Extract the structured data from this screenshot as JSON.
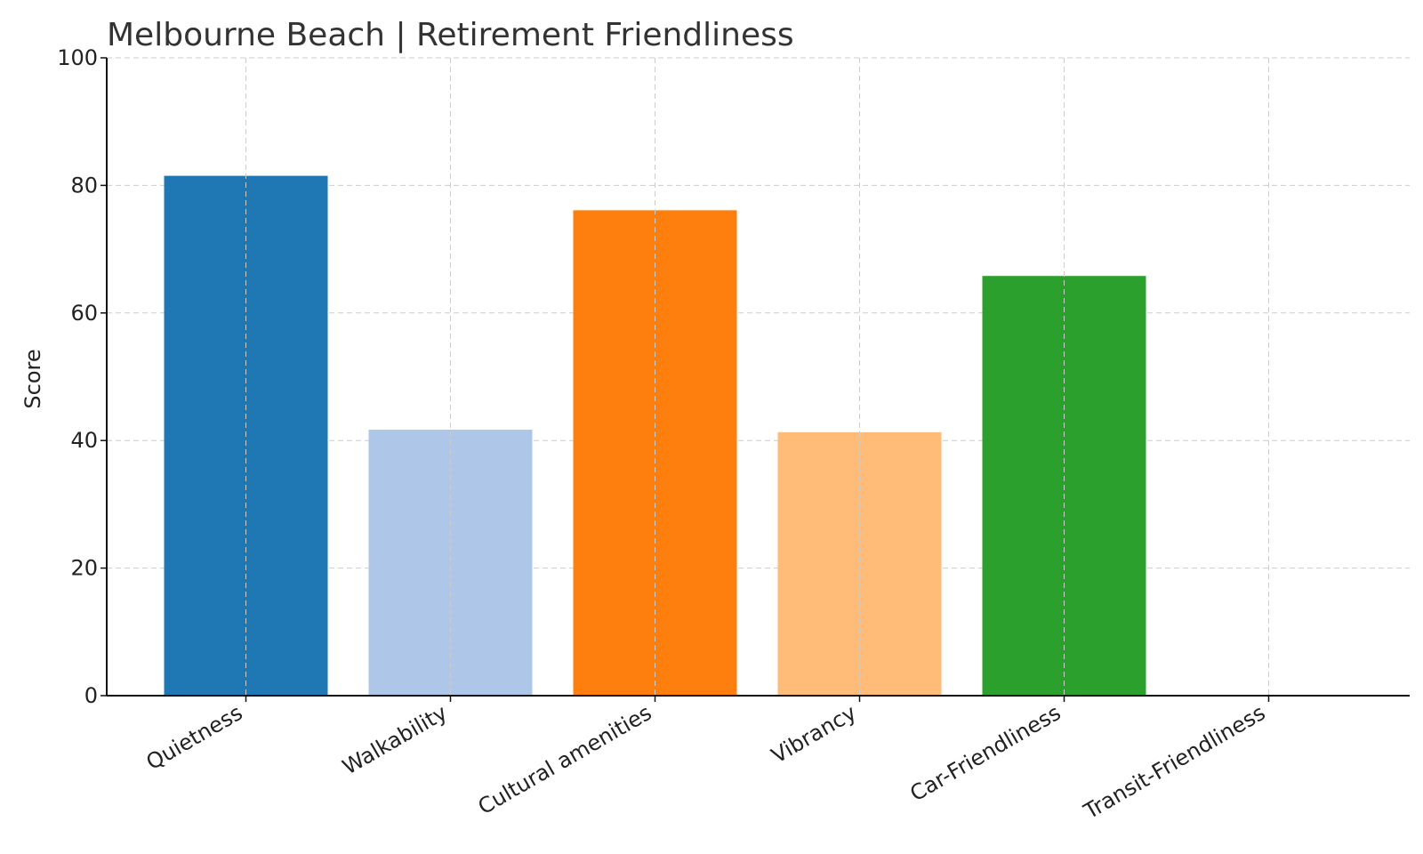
{
  "chart_data": {
    "type": "bar",
    "title": "Melbourne Beach | Retirement Friendliness",
    "xlabel": "",
    "ylabel": "Score",
    "ylim": [
      0,
      100
    ],
    "yticks": [
      0,
      20,
      40,
      60,
      80,
      100
    ],
    "grid": true,
    "categories": [
      "Quietness",
      "Walkability",
      "Cultural amenities",
      "Vibrancy",
      "Car-Friendliness",
      "Transit-Friendliness"
    ],
    "values": [
      81.5,
      41.7,
      76.1,
      41.3,
      65.8,
      0
    ],
    "colors": [
      "#1f77b4",
      "#aec7e8",
      "#ff7f0e",
      "#ffbb78",
      "#2ca02c",
      "#98df8a"
    ]
  }
}
